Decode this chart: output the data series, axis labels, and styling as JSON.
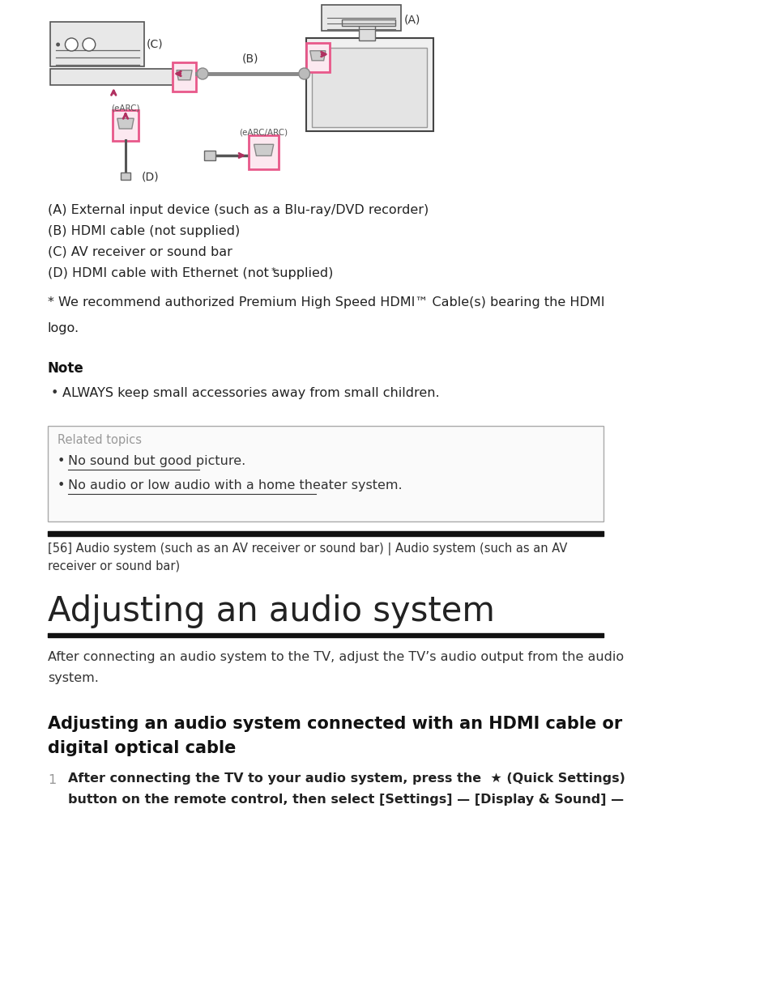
{
  "bg_color": "#ffffff",
  "diagram": {
    "pink_color": "#e8588a",
    "gray_color": "#888888",
    "dark_color": "#222222"
  },
  "labels_A_D": [
    "(A) External input device (such as a Blu-ray/DVD recorder)",
    "(B) HDMI cable (not supplied)",
    "(C) AV receiver or sound bar",
    "(D) HDMI cable with Ethernet (not supplied)*"
  ],
  "footnote_line1": "* We recommend authorized Premium High Speed HDMI™ Cable(s) bearing the HDMI",
  "footnote_line2": "logo.",
  "note_header": "Note",
  "note_bullet": "ALWAYS keep small accessories away from small children.",
  "related_topics_header": "Related topics",
  "related_link1": "No sound but good picture.",
  "related_link2": "No audio or low audio with a home theater system.",
  "breadcrumb_line1": "[56] Audio system (such as an AV receiver or sound bar) | Audio system (such as an AV",
  "breadcrumb_line2": "receiver or sound bar)",
  "main_title": "Adjusting an audio system",
  "body_line1": "After connecting an audio system to the TV, adjust the TV’s audio output from the audio",
  "body_line2": "system.",
  "section_title_line1": "Adjusting an audio system connected with an HDMI cable or",
  "section_title_line2": "digital optical cable",
  "step1_line1": "After connecting the TV to your audio system, press the  ★ (Quick Settings)",
  "step1_line2": "button on the remote control, then select [Settings] — [Display & Sound] —"
}
